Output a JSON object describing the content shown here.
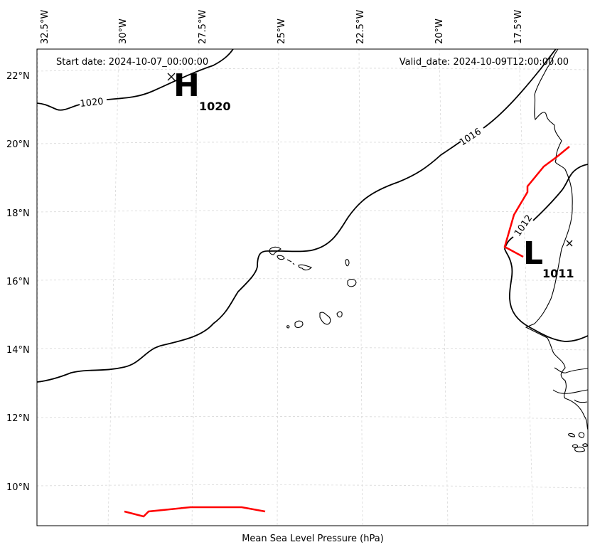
{
  "map": {
    "start_date": "Start date: 2024-10-07_00:00:00",
    "valid_date": "Valid_date: 2024-10-09T12:00:00.00",
    "xlabel": "Mean Sea Level Pressure (hPa)",
    "lon_ticks": [
      "32.5°W",
      "30°W",
      "27.5°W",
      "25°W",
      "22.5°W",
      "20°W",
      "17.5°W"
    ],
    "lat_ticks": [
      "22°N",
      "20°N",
      "18°N",
      "16°N",
      "14°N",
      "12°N",
      "10°N"
    ],
    "high": {
      "symbol": "H",
      "value": "1020"
    },
    "low": {
      "symbol": "L",
      "value": "1011"
    },
    "contour_labels": [
      "1020",
      "1016",
      "1012"
    ],
    "colors": {
      "isobar": "#000000",
      "front": "#ff0000",
      "grid": "#d8d8d8"
    }
  }
}
